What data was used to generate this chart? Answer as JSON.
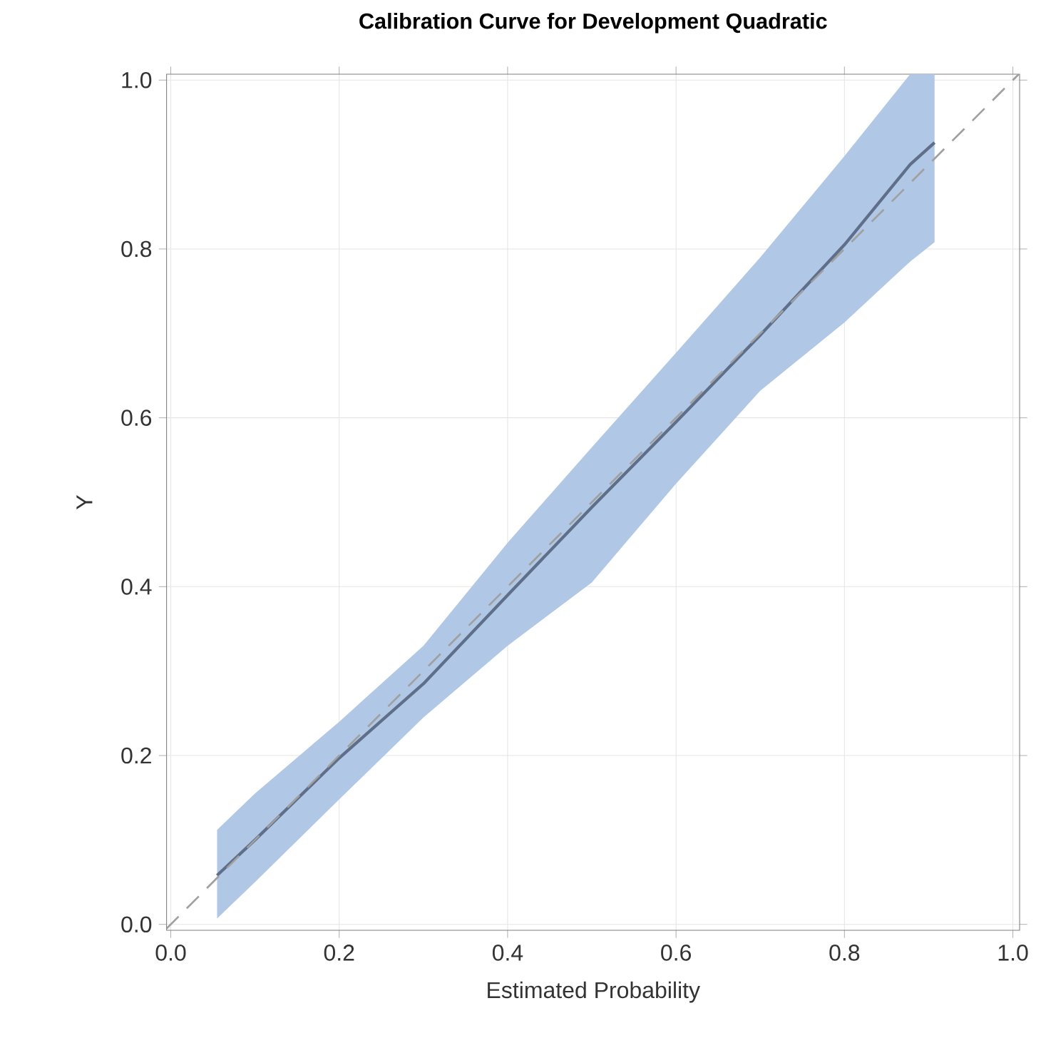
{
  "chart_data": {
    "type": "line",
    "title": "Calibration Curve for Development Quadratic",
    "xlabel": "Estimated Probability",
    "ylabel": "Y",
    "xlim": [
      -0.005,
      1.008
    ],
    "ylim": [
      -0.007,
      1.007
    ],
    "xticks": [
      {
        "value": 0,
        "label": "0.0"
      },
      {
        "value": 0.2,
        "label": "0.2"
      },
      {
        "value": 0.4,
        "label": "0.4"
      },
      {
        "value": 0.6,
        "label": "0.6"
      },
      {
        "value": 0.8,
        "label": "0.8"
      },
      {
        "value": 1,
        "label": "1.0"
      }
    ],
    "yticks": [
      {
        "value": 0,
        "label": "0.0"
      },
      {
        "value": 0.2,
        "label": "0.2"
      },
      {
        "value": 0.4,
        "label": "0.4"
      },
      {
        "value": 0.6,
        "label": "0.6"
      },
      {
        "value": 0.8,
        "label": "0.8"
      },
      {
        "value": 1,
        "label": "1.0"
      }
    ],
    "grid": true,
    "marker": "none",
    "series": [
      {
        "color": "#5f6f8a",
        "line_style": "solid",
        "x": [
          0.055,
          0.1,
          0.2,
          0.3,
          0.4,
          0.5,
          0.6,
          0.7,
          0.8,
          0.878,
          0.907
        ],
        "values": [
          0.058,
          0.1,
          0.197,
          0.285,
          0.39,
          0.494,
          0.595,
          0.698,
          0.805,
          0.9,
          0.926
        ],
        "lower": [
          0.007,
          0.05,
          0.148,
          0.245,
          0.33,
          0.405,
          0.522,
          0.632,
          0.713,
          0.785,
          0.808
        ],
        "upper": [
          0.112,
          0.155,
          0.24,
          0.33,
          0.452,
          0.565,
          0.677,
          0.79,
          0.91,
          1.007,
          1.007
        ]
      },
      {
        "color": "#a0a0a0",
        "line_style": "dashed",
        "x": [
          -0.005,
          1.007
        ],
        "values": [
          -0.005,
          1.007
        ]
      }
    ]
  }
}
